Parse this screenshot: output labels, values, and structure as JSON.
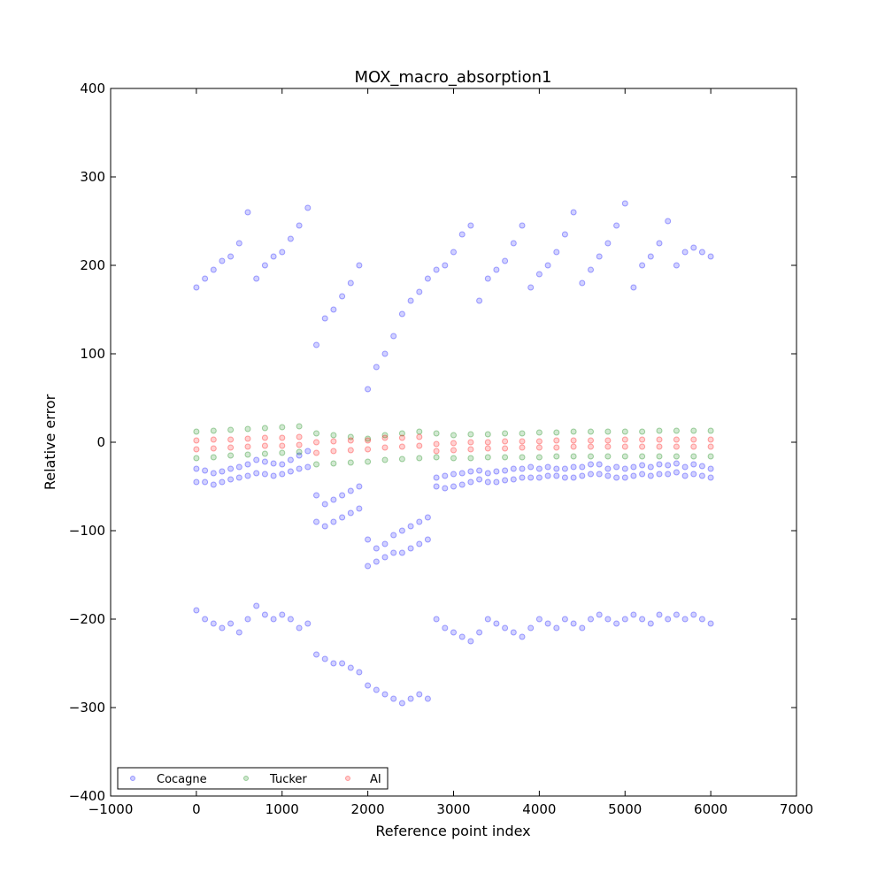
{
  "chart_data": {
    "type": "scatter",
    "title": "MOX_macro_absorption1",
    "xlabel": "Reference point index",
    "ylabel": "Relative error",
    "xlim": [
      -1000,
      7000
    ],
    "ylim": [
      -400,
      400
    ],
    "xticks": [
      {
        "value": -1000,
        "label": "−1000"
      },
      {
        "value": 0,
        "label": "0"
      },
      {
        "value": 1000,
        "label": "1000"
      },
      {
        "value": 2000,
        "label": "2000"
      },
      {
        "value": 3000,
        "label": "3000"
      },
      {
        "value": 4000,
        "label": "4000"
      },
      {
        "value": 5000,
        "label": "5000"
      },
      {
        "value": 6000,
        "label": "6000"
      },
      {
        "value": 7000,
        "label": "7000"
      }
    ],
    "yticks": [
      {
        "value": -400,
        "label": "−400"
      },
      {
        "value": -300,
        "label": "−300"
      },
      {
        "value": -200,
        "label": "−200"
      },
      {
        "value": -100,
        "label": "−100"
      },
      {
        "value": 0,
        "label": "0"
      },
      {
        "value": 100,
        "label": "100"
      },
      {
        "value": 200,
        "label": "200"
      },
      {
        "value": 300,
        "label": "300"
      },
      {
        "value": 400,
        "label": "400"
      }
    ],
    "grid": false,
    "legend_position": "lower-left",
    "series": [
      {
        "name": "Cocagne",
        "color": "#0000ff",
        "x": [
          0,
          100,
          200,
          300,
          400,
          500,
          600,
          700,
          800,
          900,
          1000,
          1100,
          1200,
          1300,
          1400,
          1500,
          1600,
          1700,
          1800,
          1900,
          2000,
          2100,
          2200,
          2300,
          2400,
          2500,
          2600,
          2700,
          2800,
          2900,
          3000,
          3100,
          3200,
          3300,
          3400,
          3500,
          3600,
          3700,
          3800,
          3900,
          4000,
          4100,
          4200,
          4300,
          4400,
          4500,
          4600,
          4700,
          4800,
          4900,
          5000,
          5100,
          5200,
          5300,
          5400,
          5500,
          5600,
          5700,
          5800,
          5900,
          6000,
          0,
          100,
          200,
          300,
          400,
          500,
          600,
          700,
          800,
          900,
          1000,
          1100,
          1200,
          1300,
          1400,
          1500,
          1600,
          1700,
          1800,
          1900,
          2000,
          2100,
          2200,
          2300,
          2400,
          2500,
          2600,
          2700,
          2800,
          2900,
          3000,
          3100,
          3200,
          3300,
          3400,
          3500,
          3600,
          3700,
          3800,
          3900,
          4000,
          4100,
          4200,
          4300,
          4400,
          4500,
          4600,
          4700,
          4800,
          4900,
          5000,
          5100,
          5200,
          5300,
          5400,
          5500,
          5600,
          5700,
          5800,
          5900,
          6000,
          0,
          100,
          200,
          300,
          400,
          500,
          600,
          700,
          800,
          900,
          1000,
          1100,
          1200,
          1300,
          1400,
          1500,
          1600,
          1700,
          1800,
          1900,
          2000,
          2100,
          2200,
          2300,
          2400,
          2500,
          2600,
          2700,
          2800,
          2900,
          3000,
          3100,
          3200,
          3300,
          3400,
          3500,
          3600,
          3700,
          3800,
          3900,
          4000,
          4100,
          4200,
          4300,
          4400,
          4500,
          4600,
          4700,
          4800,
          4900,
          5000,
          5100,
          5200,
          5300,
          5400,
          5500,
          5600,
          5700,
          5800,
          5900,
          6000,
          0,
          100,
          200,
          300,
          400,
          500,
          600,
          700,
          800,
          900,
          1000,
          1100,
          1200,
          1300,
          1400,
          1500,
          1600,
          1700,
          1800,
          1900,
          2000,
          2100,
          2200,
          2300,
          2400,
          2500,
          2600,
          2700,
          2800,
          2900,
          3000,
          3100,
          3200,
          3300,
          3400,
          3500,
          3600,
          3700,
          3800,
          3900,
          4000,
          4100,
          4200,
          4300,
          4400,
          4500,
          4600,
          4700,
          4800,
          4900,
          5000,
          5100,
          5200,
          5300,
          5400,
          5500,
          5600,
          5700,
          5800,
          5900,
          6000
        ],
        "y": [
          175,
          185,
          195,
          205,
          210,
          225,
          260,
          185,
          200,
          210,
          215,
          230,
          245,
          265,
          110,
          140,
          150,
          165,
          180,
          200,
          60,
          85,
          100,
          120,
          145,
          160,
          170,
          185,
          195,
          200,
          215,
          235,
          245,
          160,
          185,
          195,
          205,
          225,
          245,
          175,
          190,
          200,
          215,
          235,
          260,
          180,
          195,
          210,
          225,
          245,
          270,
          175,
          200,
          210,
          225,
          250,
          200,
          215,
          220,
          215,
          210,
          -30,
          -32,
          -35,
          -33,
          -30,
          -28,
          -25,
          -20,
          -22,
          -24,
          -25,
          -20,
          -15,
          -10,
          -60,
          -70,
          -65,
          -60,
          -55,
          -50,
          -110,
          -120,
          -115,
          -105,
          -100,
          -95,
          -90,
          -85,
          -40,
          -38,
          -36,
          -35,
          -33,
          -32,
          -35,
          -33,
          -32,
          -30,
          -30,
          -28,
          -30,
          -28,
          -30,
          -30,
          -28,
          -28,
          -25,
          -25,
          -30,
          -28,
          -30,
          -28,
          -26,
          -28,
          -25,
          -26,
          -24,
          -28,
          -25,
          -27,
          -30,
          -190,
          -200,
          -205,
          -210,
          -205,
          -215,
          -200,
          -185,
          -195,
          -200,
          -195,
          -200,
          -210,
          -205,
          -240,
          -245,
          -250,
          -250,
          -255,
          -260,
          -275,
          -280,
          -285,
          -290,
          -295,
          -290,
          -285,
          -290,
          -200,
          -210,
          -215,
          -220,
          -225,
          -215,
          -200,
          -205,
          -210,
          -215,
          -220,
          -210,
          -200,
          -205,
          -210,
          -200,
          -205,
          -210,
          -200,
          -195,
          -200,
          -205,
          -200,
          -195,
          -200,
          -205,
          -195,
          -200,
          -195,
          -200,
          -195,
          -200,
          -205,
          -45,
          -45,
          -48,
          -45,
          -42,
          -40,
          -38,
          -35,
          -36,
          -38,
          -36,
          -33,
          -30,
          -28,
          -90,
          -95,
          -90,
          -85,
          -80,
          -75,
          -140,
          -135,
          -130,
          -125,
          -125,
          -120,
          -115,
          -110,
          -50,
          -52,
          -50,
          -48,
          -45,
          -42,
          -45,
          -45,
          -43,
          -42,
          -40,
          -40,
          -40,
          -38,
          -38,
          -40,
          -40,
          -38,
          -36,
          -36,
          -38,
          -40,
          -40,
          -38,
          -36,
          -38,
          -36,
          -36,
          -34,
          -38,
          -36,
          -38,
          -40
        ]
      },
      {
        "name": "Tucker",
        "color": "#008000",
        "x": [
          0,
          200,
          400,
          600,
          800,
          1000,
          1200,
          1400,
          1600,
          1800,
          2000,
          2200,
          2400,
          2600,
          2800,
          3000,
          3200,
          3400,
          3600,
          3800,
          4000,
          4200,
          4400,
          4600,
          4800,
          5000,
          5200,
          5400,
          5600,
          5800,
          6000,
          0,
          200,
          400,
          600,
          800,
          1000,
          1200,
          1400,
          1600,
          1800,
          2000,
          2200,
          2400,
          2600,
          2800,
          3000,
          3200,
          3400,
          3600,
          3800,
          4000,
          4200,
          4400,
          4600,
          4800,
          5000,
          5200,
          5400,
          5600,
          5800,
          6000
        ],
        "y": [
          12,
          13,
          14,
          15,
          16,
          17,
          18,
          10,
          8,
          6,
          4,
          8,
          10,
          12,
          10,
          8,
          9,
          9,
          10,
          10,
          11,
          11,
          12,
          12,
          12,
          12,
          12,
          13,
          13,
          13,
          13,
          -18,
          -17,
          -15,
          -14,
          -13,
          -12,
          -11,
          -25,
          -24,
          -23,
          -22,
          -20,
          -19,
          -18,
          -17,
          -18,
          -18,
          -17,
          -17,
          -17,
          -17,
          -16,
          -16,
          -16,
          -16,
          -16,
          -16,
          -16,
          -16,
          -16,
          -16
        ]
      },
      {
        "name": "AI",
        "color": "#ff0000",
        "x": [
          0,
          200,
          400,
          600,
          800,
          1000,
          1200,
          1400,
          1600,
          1800,
          2000,
          2200,
          2400,
          2600,
          2800,
          3000,
          3200,
          3400,
          3600,
          3800,
          4000,
          4200,
          4400,
          4600,
          4800,
          5000,
          5200,
          5400,
          5600,
          5800,
          6000,
          0,
          200,
          400,
          600,
          800,
          1000,
          1200,
          1400,
          1600,
          1800,
          2000,
          2200,
          2400,
          2600,
          2800,
          3000,
          3200,
          3400,
          3600,
          3800,
          4000,
          4200,
          4400,
          4600,
          4800,
          5000,
          5200,
          5400,
          5600,
          5800,
          6000
        ],
        "y": [
          2,
          3,
          3,
          4,
          5,
          5,
          6,
          0,
          1,
          2,
          2,
          5,
          5,
          6,
          -2,
          -1,
          0,
          0,
          1,
          1,
          1,
          2,
          2,
          2,
          2,
          3,
          3,
          3,
          3,
          3,
          3,
          -8,
          -7,
          -6,
          -5,
          -4,
          -4,
          -3,
          -12,
          -10,
          -9,
          -8,
          -6,
          -5,
          -4,
          -10,
          -9,
          -8,
          -7,
          -7,
          -6,
          -6,
          -6,
          -5,
          -5,
          -5,
          -5,
          -5,
          -5,
          -5,
          -5,
          -5
        ]
      }
    ]
  }
}
